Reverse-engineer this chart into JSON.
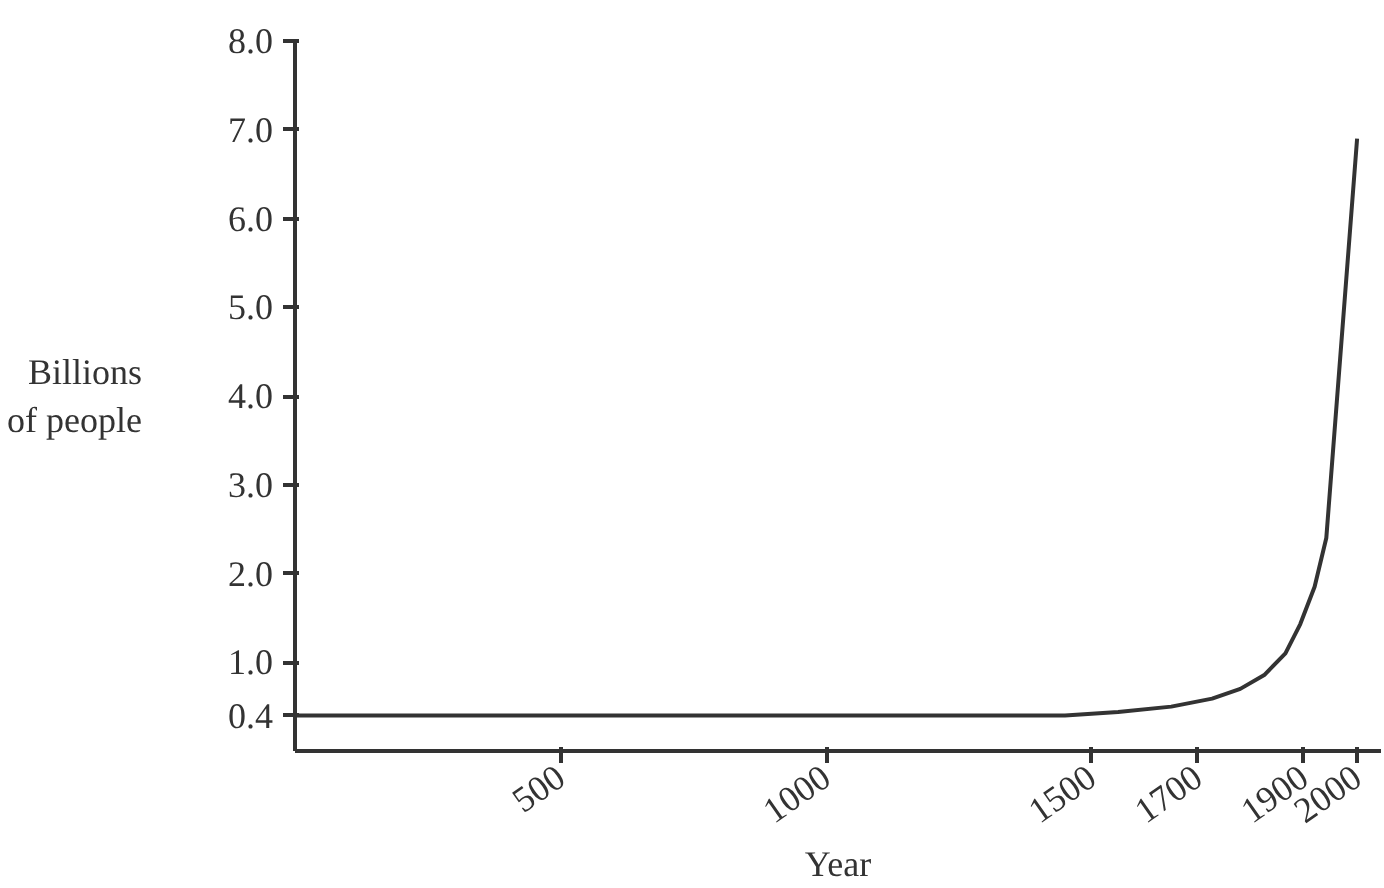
{
  "chart_data": {
    "type": "line",
    "xlabel": "Year",
    "ylabel": "Billions\nof people",
    "x": [
      0,
      1450,
      1550,
      1650,
      1727,
      1780,
      1826,
      1865,
      1893,
      1920,
      1942,
      2000
    ],
    "series": [
      {
        "color": "#333333",
        "values": [
          0.4,
          0.4,
          0.44,
          0.5,
          0.59,
          0.7,
          0.86,
          1.1,
          1.43,
          1.85,
          2.4,
          6.9
        ]
      }
    ],
    "xlim": [
      0,
      2045
    ],
    "ylim": [
      0,
      8
    ],
    "xticks": [
      500,
      1000,
      1500,
      1700,
      1900,
      2000
    ],
    "yticks": [
      {
        "value": 0.4,
        "label": "0.4"
      },
      {
        "value": 1,
        "label": "1.0"
      },
      {
        "value": 2,
        "label": "2.0"
      },
      {
        "value": 3,
        "label": "3.0"
      },
      {
        "value": 4,
        "label": "4.0"
      },
      {
        "value": 5,
        "label": "5.0"
      },
      {
        "value": 6,
        "label": "6.0"
      },
      {
        "value": 7,
        "label": "7.0"
      },
      {
        "value": 8,
        "label": "8.0"
      }
    ],
    "grid": false,
    "marker": "none",
    "line_style": "solid"
  }
}
